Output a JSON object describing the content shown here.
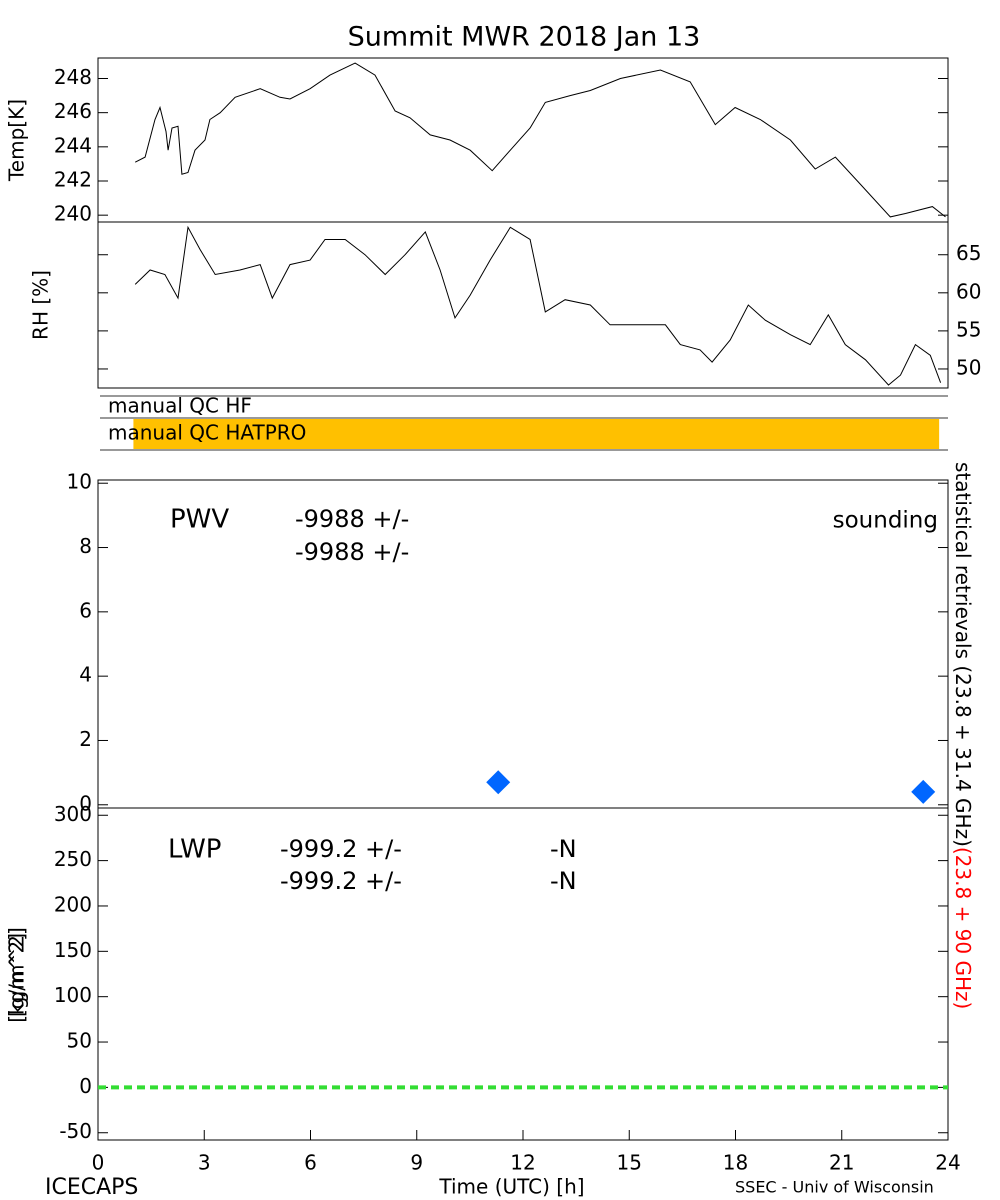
{
  "title": "Summit MWR 2018 Jan 13",
  "footer_left": "ICECAPS",
  "footer_right": "SSEC - Univ of Wisconsin",
  "side_labels": [
    {
      "text": "statistical retrievals (23.8 + 31.4 GHz)",
      "color": "#000000"
    },
    {
      "text": "(23.8 + 90 GHz)",
      "color": "#ff0000"
    }
  ],
  "chart_data": [
    {
      "type": "line",
      "ylabel": "Temp[K]",
      "yaxis_side": "left",
      "ylim": [
        239.6,
        249.2
      ],
      "yticks": [
        240,
        242,
        244,
        246,
        248
      ],
      "color": "#000000",
      "x": [
        1.05,
        1.33,
        1.61,
        1.75,
        1.92,
        1.98,
        2.09,
        2.26,
        2.37,
        2.54,
        2.74,
        3.02,
        3.16,
        3.45,
        3.87,
        4.58,
        5.14,
        5.42,
        5.99,
        6.55,
        7.26,
        7.82,
        8.39,
        8.81,
        9.38,
        9.94,
        10.51,
        11.13,
        11.64,
        12.2,
        12.63,
        13.33,
        13.9,
        14.75,
        15.88,
        16.72,
        17.43,
        17.99,
        18.7,
        19.55,
        20.25,
        20.82,
        21.53,
        22.37,
        22.8,
        23.56,
        23.93
      ],
      "values": [
        243.1,
        243.4,
        245.6,
        246.3,
        244.9,
        243.8,
        245.1,
        245.2,
        242.4,
        242.5,
        243.8,
        244.4,
        245.6,
        246.0,
        246.9,
        247.4,
        246.9,
        246.8,
        247.4,
        248.2,
        248.9,
        248.2,
        246.1,
        245.7,
        244.7,
        244.4,
        243.8,
        242.6,
        243.8,
        245.1,
        246.6,
        247.0,
        247.3,
        248.0,
        248.5,
        247.8,
        245.3,
        246.3,
        245.6,
        244.4,
        242.7,
        243.4,
        241.8,
        239.9,
        240.1,
        240.5,
        239.9
      ]
    },
    {
      "type": "line",
      "ylabel": "RH [%]",
      "yaxis_side": "right",
      "ylim": [
        47.5,
        69.3
      ],
      "yticks": [
        50,
        55,
        60,
        65
      ],
      "color": "#000000",
      "x": [
        1.05,
        1.47,
        1.89,
        2.26,
        2.54,
        2.88,
        3.31,
        4.01,
        4.58,
        4.92,
        5.42,
        5.99,
        6.41,
        6.98,
        7.54,
        8.11,
        8.67,
        9.24,
        9.66,
        10.08,
        10.51,
        11.07,
        11.64,
        12.2,
        12.63,
        13.19,
        13.9,
        14.46,
        15.31,
        16.02,
        16.44,
        17.0,
        17.34,
        17.85,
        18.36,
        18.84,
        19.55,
        20.11,
        20.62,
        21.1,
        21.67,
        22.32,
        22.66,
        23.08,
        23.5,
        23.79
      ],
      "values": [
        61.1,
        63.0,
        62.4,
        59.3,
        68.6,
        65.7,
        62.4,
        63.0,
        63.7,
        59.3,
        63.7,
        64.3,
        67.0,
        67.0,
        65.0,
        62.4,
        65.0,
        68.0,
        63.0,
        56.7,
        59.7,
        64.3,
        68.6,
        67.0,
        57.5,
        59.1,
        58.4,
        55.8,
        55.8,
        55.8,
        53.2,
        52.5,
        50.9,
        53.8,
        58.4,
        56.4,
        54.5,
        53.2,
        57.1,
        53.2,
        51.2,
        47.9,
        49.2,
        53.2,
        51.8,
        48.2
      ]
    },
    {
      "type": "timeline",
      "categories": [
        "manual QC HF",
        "manual QC HATPRO"
      ],
      "spans": [
        null,
        [
          1.0,
          23.75
        ]
      ],
      "color": "#ffc000"
    },
    {
      "type": "scatter",
      "ylabel": "[kg/m^2]",
      "yaxis_side": "left",
      "ylim": [
        -0.1,
        10.1
      ],
      "yticks": [
        0,
        2,
        4,
        6,
        8,
        10
      ],
      "legend": "upper right",
      "series": [
        {
          "name": "sounding",
          "color": "#0066ff",
          "x": [
            11.3,
            23.3
          ],
          "values": [
            0.7,
            0.4
          ]
        }
      ],
      "annotations": [
        {
          "text": "PWV",
          "color": "#000000"
        },
        {
          "text": "-9988 +/-",
          "color": "#000000"
        },
        {
          "text": "-9988 +/-",
          "color": "#ff0000"
        }
      ]
    },
    {
      "type": "line",
      "ylabel": "[g/m^2]",
      "yaxis_side": "left",
      "ylim": [
        -58,
        308
      ],
      "yticks": [
        -50,
        0,
        50,
        100,
        150,
        200,
        250,
        300
      ],
      "hlines": [
        0
      ],
      "hline_color": "#33dd33",
      "hline_style": "dashed",
      "xlabel": "Time (UTC) [h]",
      "xlim": [
        0,
        24
      ],
      "xticks": [
        0,
        3,
        6,
        9,
        12,
        15,
        18,
        21,
        24
      ],
      "annotations": [
        {
          "text": "LWP",
          "color": "#000000"
        },
        {
          "text": "-999.2 +/-",
          "color": "#000000"
        },
        {
          "text": "-N",
          "color": "#000000"
        },
        {
          "text": "-999.2 +/-",
          "color": "#ff0000"
        },
        {
          "text": "-N",
          "color": "#ff0000"
        }
      ]
    }
  ]
}
